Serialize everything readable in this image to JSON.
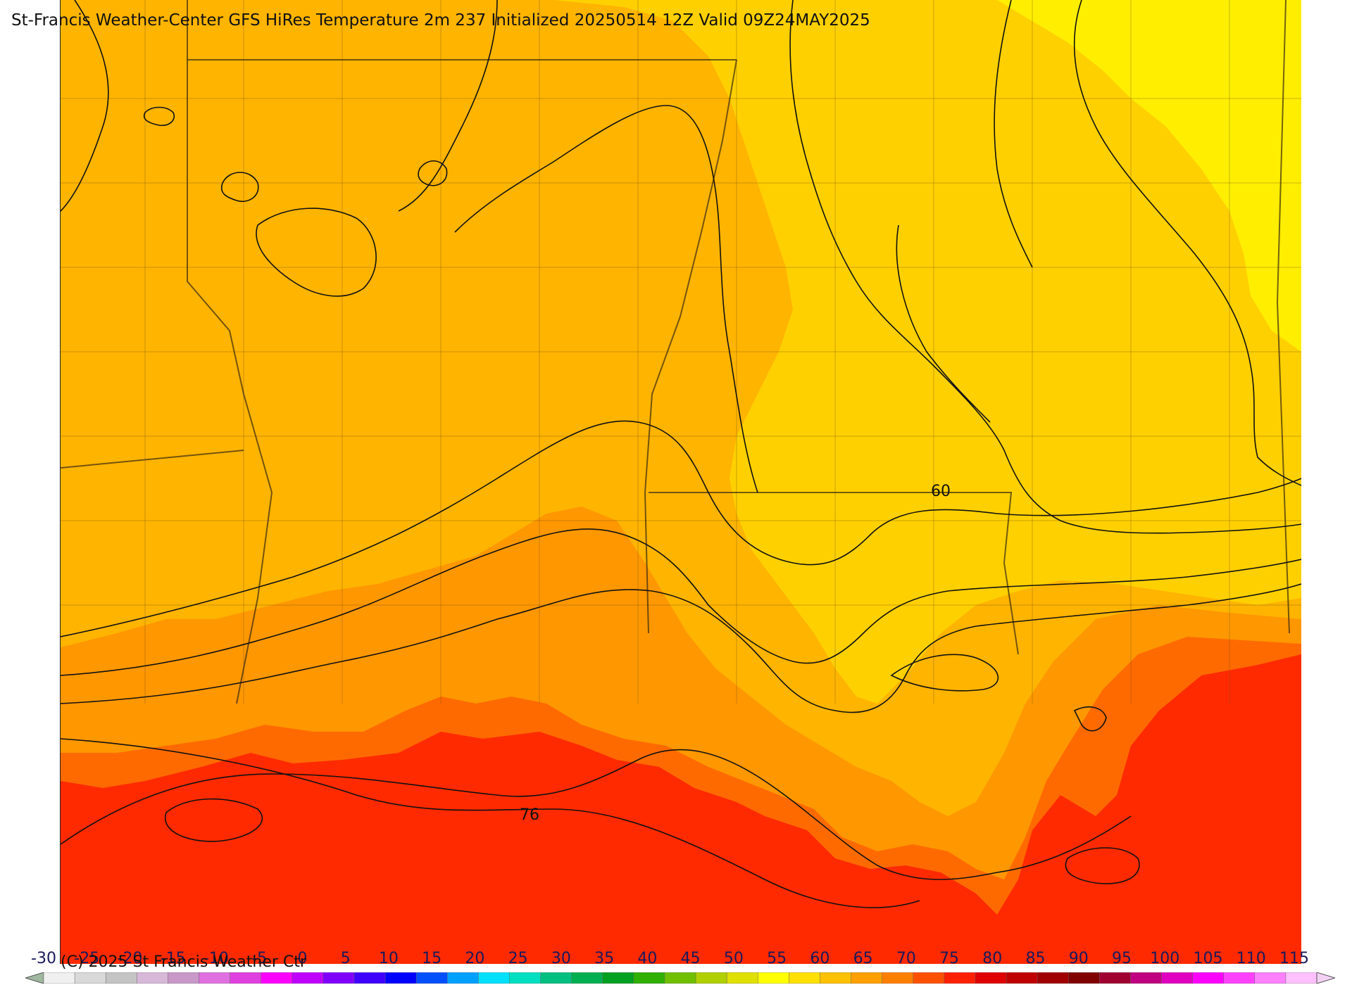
{
  "title": "St-Francis Weather-Center GFS HiRes Temperature 2m  237 Initialized 20250514 12Z Valid 09Z24MAY2025",
  "credit": "(C) 2025 St Francis Weather Ctr",
  "contour_labels": [
    "60",
    "76"
  ],
  "colorbar": {
    "ticks": [
      "-30",
      "-25",
      "-20",
      "-15",
      "-10",
      "-5",
      "0",
      "5",
      "10",
      "15",
      "20",
      "25",
      "30",
      "35",
      "40",
      "45",
      "50",
      "55",
      "60",
      "65",
      "70",
      "75",
      "80",
      "85",
      "90",
      "95",
      "100",
      "105",
      "110",
      "115"
    ],
    "colors": [
      "#f0f0f0",
      "#d9d9d9",
      "#c4c4c4",
      "#d8b8d8",
      "#c898c8",
      "#e070e0",
      "#e040e0",
      "#ff00ff",
      "#c000ff",
      "#8000ff",
      "#4000ff",
      "#0000ff",
      "#0050ff",
      "#00a0ff",
      "#00e0ff",
      "#00e0c0",
      "#00c080",
      "#00b050",
      "#00a020",
      "#30b000",
      "#70c000",
      "#b0d000",
      "#e0e000",
      "#ffff00",
      "#ffe000",
      "#ffc000",
      "#ffa000",
      "#ff8000",
      "#ff5000",
      "#ff2000",
      "#e00000",
      "#c00000",
      "#a00000",
      "#800000",
      "#a00030",
      "#c00080",
      "#e000c0",
      "#ff00ff",
      "#ff40ff",
      "#ff80ff",
      "#ffc0ff"
    ]
  },
  "colors": {
    "t55_60": "#ffee00",
    "t60_65": "#ffd000",
    "t65_70": "#ffb400",
    "t70_75": "#ff9700",
    "t75_80": "#ff6a00",
    "t80_85": "#ff2a00"
  }
}
